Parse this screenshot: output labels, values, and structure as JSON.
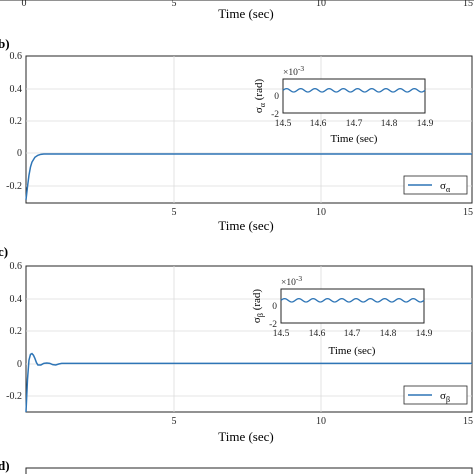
{
  "colors": {
    "series": "#2e75b6",
    "grid": "#dcdcdc",
    "axis": "#262626"
  },
  "top_partial": {
    "xticks": [
      "0",
      "5",
      "10",
      "15"
    ],
    "xlabel": "Time (sec)"
  },
  "bottom_partial": {
    "label": "d)"
  },
  "chart_data": [
    {
      "panel": "b)",
      "type": "line",
      "xlabel": "Time (sec)",
      "xlim": [
        0,
        15
      ],
      "ylim": [
        -0.3,
        0.6
      ],
      "xticks": [
        "5",
        "10",
        "15"
      ],
      "yticks": [
        "0.6",
        "0.4",
        "0.2",
        "0",
        "-0.2"
      ],
      "grid": true,
      "legend": {
        "position": "lower-right",
        "entries": [
          "σα"
        ]
      },
      "series": [
        {
          "name": "σα",
          "x": [
            0,
            0.05,
            0.1,
            0.15,
            0.2,
            0.3,
            0.4,
            0.5,
            0.6,
            0.8,
            1,
            2,
            5,
            10,
            15
          ],
          "y": [
            -0.28,
            -0.2,
            -0.13,
            -0.08,
            -0.05,
            -0.02,
            -0.008,
            -0.002,
            0,
            0,
            0,
            0,
            0,
            0,
            0
          ]
        }
      ],
      "inset": {
        "xlabel": "Time (sec)",
        "ylabel": "σα (rad)",
        "exponent": "×10-3",
        "xlim": [
          14.5,
          14.9
        ],
        "ylim": [
          -2,
          1
        ],
        "xticks": [
          "14.5",
          "14.6",
          "14.7",
          "14.8",
          "14.9"
        ],
        "yticks": [
          "0",
          "-2"
        ],
        "series": {
          "mean": 0,
          "amplitude": 0.15,
          "period": 0.04
        }
      }
    },
    {
      "panel": "c)",
      "type": "line",
      "xlabel": "Time (sec)",
      "xlim": [
        0,
        15
      ],
      "ylim": [
        -0.3,
        0.6
      ],
      "xticks": [
        "5",
        "10",
        "15"
      ],
      "yticks": [
        "0.6",
        "0.4",
        "0.2",
        "0",
        "-0.2"
      ],
      "grid": true,
      "legend": {
        "position": "lower-right",
        "entries": [
          "σβ"
        ]
      },
      "series": [
        {
          "name": "σβ",
          "x": [
            0,
            0.05,
            0.1,
            0.15,
            0.2,
            0.25,
            0.3,
            0.35,
            0.4,
            0.5,
            0.6,
            0.7,
            0.8,
            0.9,
            1.0,
            1.1,
            1.2,
            1.4,
            2,
            5,
            10,
            15
          ],
          "y": [
            -0.3,
            -0.1,
            0.02,
            0.055,
            0.06,
            0.05,
            0.03,
            0.005,
            -0.01,
            -0.01,
            0,
            0.002,
            0,
            -0.008,
            -0.01,
            -0.004,
            0,
            0,
            0,
            0,
            0,
            0
          ]
        }
      ],
      "inset": {
        "xlabel": "Time (sec)",
        "ylabel": "σβ (rad)",
        "exponent": "×10-3",
        "xlim": [
          14.5,
          14.9
        ],
        "ylim": [
          -2,
          1
        ],
        "xticks": [
          "14.5",
          "14.6",
          "14.7",
          "14.8",
          "14.9"
        ],
        "yticks": [
          "0",
          "-2"
        ],
        "series": {
          "mean": 0,
          "amplitude": 0.15,
          "period": 0.04
        }
      }
    }
  ]
}
